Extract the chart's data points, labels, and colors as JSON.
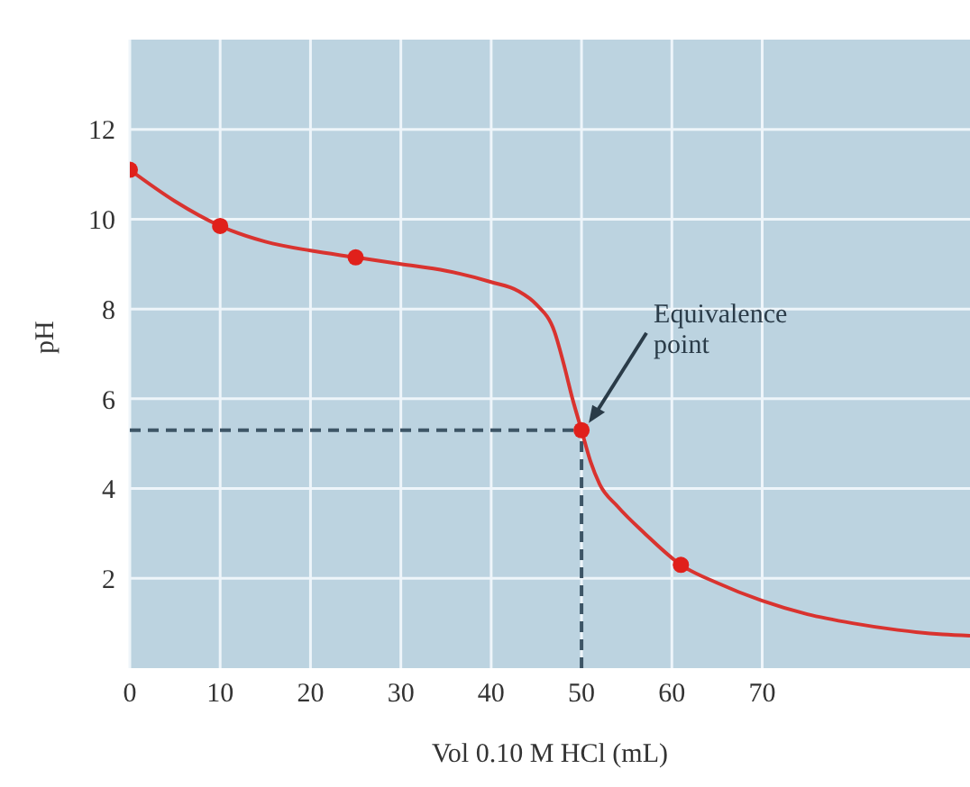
{
  "chart_data": {
    "type": "line",
    "xlabel": "Vol 0.10 M HCl (mL)",
    "ylabel": "pH",
    "xlim": [
      0,
      93
    ],
    "xticks": [
      0,
      10,
      20,
      30,
      40,
      50,
      60,
      70
    ],
    "ylim": [
      0,
      14
    ],
    "yticks": [
      2,
      4,
      6,
      8,
      10,
      12
    ],
    "grid": true,
    "series": [
      {
        "color": "#d9332f",
        "marker": "none",
        "x": [
          0,
          5,
          10,
          15,
          20,
          25,
          30,
          35,
          40,
          43,
          45,
          47,
          48,
          49,
          50,
          51,
          52,
          54,
          57,
          61,
          65,
          70,
          75,
          80,
          85,
          90,
          93
        ],
        "values": [
          11.1,
          10.4,
          9.85,
          9.5,
          9.3,
          9.15,
          9.0,
          8.85,
          8.6,
          8.4,
          8.1,
          7.5,
          6.8,
          6.0,
          5.3,
          4.6,
          4.1,
          3.6,
          3.0,
          2.3,
          1.9,
          1.5,
          1.2,
          1.0,
          0.85,
          0.75,
          0.72
        ]
      },
      {
        "type": "scatter",
        "color": "#e0201b",
        "marker": "circle",
        "x": [
          0,
          10,
          25,
          50,
          61
        ],
        "values": [
          11.1,
          9.85,
          9.15,
          5.3,
          2.3
        ]
      }
    ],
    "ref_lines": [
      {
        "axis": "x",
        "value": 50,
        "color": "#3d5566",
        "line_style": "dashed"
      },
      {
        "axis": "y",
        "value": 5.3,
        "color": "#3d5566",
        "line_style": "dashed"
      }
    ],
    "annotations": [
      "Equivalence\npoint"
    ]
  }
}
